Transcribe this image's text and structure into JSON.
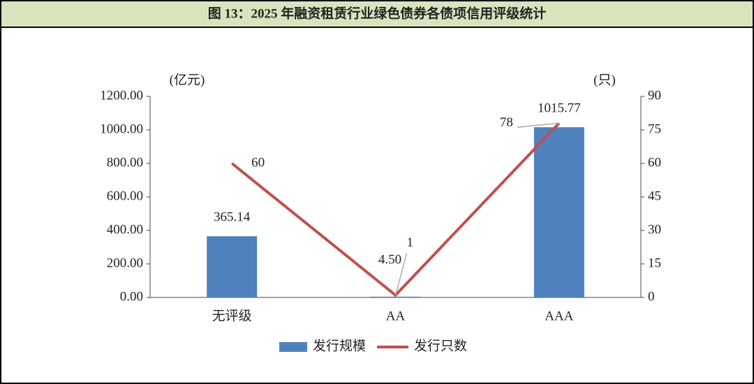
{
  "chart_data": {
    "type": "bar-line",
    "title": "图 13：2025 年融资租赁行业绿色债券各债项信用评级统计",
    "ylabel": "(亿元)",
    "y2label": "(只)",
    "categories": [
      "无评级",
      "AA",
      "AAA"
    ],
    "series": [
      {
        "name": "发行规模",
        "type": "bar",
        "color": "#4f81bd",
        "values": [
          365.14,
          4.5,
          1015.77
        ],
        "value_labels": [
          "365.14",
          "4.50",
          "1015.77"
        ]
      },
      {
        "name": "发行只数",
        "type": "line",
        "axis": "y2",
        "color": "#c0504d",
        "values": [
          60,
          1,
          78
        ]
      }
    ],
    "ylim": [
      0,
      1200
    ],
    "yticks": [
      {
        "value": 0,
        "label": "0.00"
      },
      {
        "value": 200,
        "label": "200.00"
      },
      {
        "value": 400,
        "label": "400.00"
      },
      {
        "value": 600,
        "label": "600.00"
      },
      {
        "value": 800,
        "label": "800.00"
      },
      {
        "value": 1000,
        "label": "1000.00"
      },
      {
        "value": 1200,
        "label": "1200.00"
      }
    ],
    "y2lim": [
      0,
      90
    ],
    "y2ticks": [
      0,
      15,
      30,
      45,
      60,
      75,
      90
    ],
    "grid": false,
    "legend": "bottom"
  }
}
